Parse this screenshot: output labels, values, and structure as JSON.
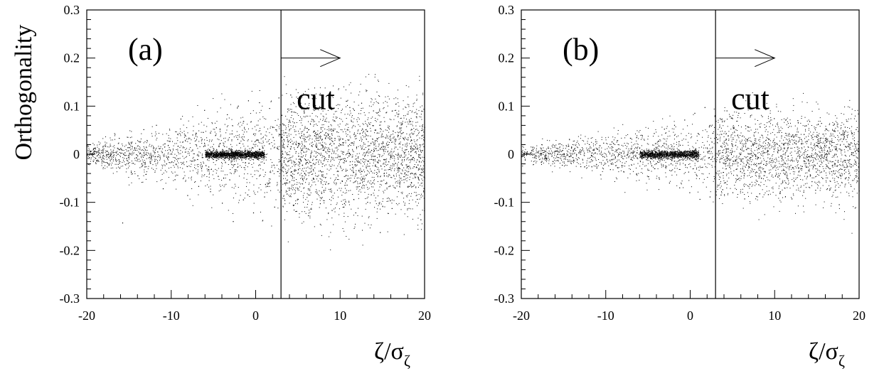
{
  "chart_data": [
    {
      "type": "scatter",
      "panel_label": "(a)",
      "xlabel": {
        "main": "ζ/σ",
        "sub": "ζ"
      },
      "ylabel": "Orthogonality",
      "xlim": [
        -20,
        20
      ],
      "ylim": [
        -0.3,
        0.3
      ],
      "xticks": [
        -20,
        -10,
        0,
        10,
        20
      ],
      "xtick_labels": [
        "-20",
        "-10",
        "0",
        "10",
        "20"
      ],
      "yticks": [
        -0.3,
        -0.2,
        -0.1,
        0,
        0.1,
        0.2,
        0.3
      ],
      "ytick_labels": [
        "-0.3",
        "-0.2",
        "-0.1",
        "0",
        "0.1",
        "0.2",
        "0.3"
      ],
      "cut": {
        "x": 3,
        "label": "cut",
        "arrow_from": 3,
        "arrow_to": 10,
        "arrow_y": 0.2
      },
      "points": [
        [
          -18.6,
          0.012
        ],
        [
          -17.4,
          -0.021
        ],
        [
          -16.2,
          0.034
        ],
        [
          -15.8,
          -0.142
        ],
        [
          -15.1,
          0.008
        ],
        [
          -14.0,
          -0.044
        ],
        [
          -13.3,
          0.052
        ],
        [
          -12.5,
          -0.018
        ],
        [
          -11.8,
          0.061
        ],
        [
          -11.0,
          -0.071
        ],
        [
          -10.2,
          0.028
        ],
        [
          -9.6,
          -0.052
        ],
        [
          -8.9,
          0.074
        ],
        [
          -8.1,
          -0.085
        ],
        [
          -7.5,
          0.041
        ],
        [
          -6.8,
          -0.066
        ],
        [
          -6.1,
          0.092
        ],
        [
          -5.4,
          -0.077
        ],
        [
          -4.7,
          0.056
        ],
        [
          -4.0,
          -0.101
        ],
        [
          -3.4,
          0.083
        ],
        [
          -2.7,
          -0.139
        ],
        [
          -2.1,
          0.101
        ],
        [
          -1.5,
          -0.094
        ],
        [
          -0.9,
          0.112
        ],
        [
          -0.3,
          -0.121
        ],
        [
          0.4,
          0.108
        ],
        [
          1.0,
          -0.088
        ],
        [
          1.6,
          0.096
        ],
        [
          2.2,
          -0.109
        ],
        [
          2.7,
          0.118
        ],
        [
          3.4,
          -0.095
        ],
        [
          4.1,
          0.124
        ],
        [
          4.8,
          -0.118
        ],
        [
          5.5,
          0.097
        ],
        [
          6.2,
          -0.127
        ],
        [
          6.9,
          0.113
        ],
        [
          7.6,
          -0.102
        ],
        [
          8.3,
          0.121
        ],
        [
          9.0,
          -0.116
        ],
        [
          9.7,
          0.104
        ],
        [
          10.4,
          -0.109
        ],
        [
          11.1,
          0.098
        ],
        [
          11.8,
          -0.121
        ],
        [
          12.5,
          0.107
        ],
        [
          13.2,
          -0.099
        ],
        [
          13.9,
          0.091
        ],
        [
          14.7,
          -0.162
        ],
        [
          15.4,
          0.087
        ],
        [
          16.1,
          -0.112
        ],
        [
          16.8,
          0.079
        ],
        [
          17.6,
          -0.105
        ],
        [
          18.3,
          0.069
        ],
        [
          19.1,
          -0.093
        ],
        [
          19.7,
          0.058
        ]
      ]
    },
    {
      "type": "scatter",
      "panel_label": "(b)",
      "xlabel": {
        "main": "ζ/σ",
        "sub": "ζ"
      },
      "ylabel": "",
      "xlim": [
        -20,
        20
      ],
      "ylim": [
        -0.3,
        0.3
      ],
      "xticks": [
        -20,
        -10,
        0,
        10,
        20
      ],
      "xtick_labels": [
        "-20",
        "-10",
        "0",
        "10",
        "20"
      ],
      "yticks": [
        -0.3,
        -0.2,
        -0.1,
        0,
        0.1,
        0.2,
        0.3
      ],
      "ytick_labels": [
        "-0.3",
        "-0.2",
        "-0.1",
        "0",
        "0.1",
        "0.2",
        "0.3"
      ],
      "cut": {
        "x": 3,
        "label": "cut",
        "arrow_from": 3,
        "arrow_to": 10,
        "arrow_y": 0.2
      },
      "points": [
        [
          -18.8,
          0.009
        ],
        [
          -17.6,
          -0.014
        ],
        [
          -16.4,
          0.018
        ],
        [
          -15.2,
          -0.022
        ],
        [
          -14.1,
          0.016
        ],
        [
          -13.0,
          -0.025
        ],
        [
          -12.0,
          0.021
        ],
        [
          -11.1,
          -0.028
        ],
        [
          -10.3,
          0.024
        ],
        [
          -9.5,
          -0.031
        ],
        [
          -8.7,
          0.029
        ],
        [
          -7.9,
          -0.036
        ],
        [
          -7.1,
          0.034
        ],
        [
          -6.4,
          -0.041
        ],
        [
          -5.7,
          0.039
        ],
        [
          -5.0,
          -0.046
        ],
        [
          -4.3,
          0.044
        ],
        [
          -3.7,
          -0.051
        ],
        [
          -3.1,
          0.053
        ],
        [
          -2.5,
          -0.059
        ],
        [
          -1.9,
          0.061
        ],
        [
          -1.3,
          -0.069
        ],
        [
          -0.7,
          0.072
        ],
        [
          -0.1,
          -0.079
        ],
        [
          0.5,
          0.086
        ],
        [
          1.1,
          -0.093
        ],
        [
          1.7,
          0.098
        ],
        [
          2.3,
          -0.088
        ],
        [
          2.9,
          0.081
        ],
        [
          3.6,
          -0.084
        ],
        [
          4.3,
          0.091
        ],
        [
          5.0,
          -0.079
        ],
        [
          5.7,
          0.086
        ],
        [
          6.4,
          -0.092
        ],
        [
          7.1,
          0.081
        ],
        [
          7.8,
          -0.087
        ],
        [
          8.5,
          0.079
        ],
        [
          9.2,
          -0.083
        ],
        [
          9.9,
          0.075
        ],
        [
          10.6,
          -0.081
        ],
        [
          11.3,
          0.073
        ],
        [
          12.0,
          -0.092
        ],
        [
          12.7,
          0.071
        ],
        [
          13.4,
          -0.078
        ],
        [
          14.1,
          0.069
        ],
        [
          14.8,
          -0.074
        ],
        [
          15.5,
          0.065
        ],
        [
          16.2,
          -0.071
        ],
        [
          16.9,
          0.061
        ],
        [
          17.6,
          -0.104
        ],
        [
          18.3,
          0.057
        ],
        [
          19.0,
          -0.066
        ],
        [
          19.6,
          0.052
        ]
      ]
    }
  ]
}
